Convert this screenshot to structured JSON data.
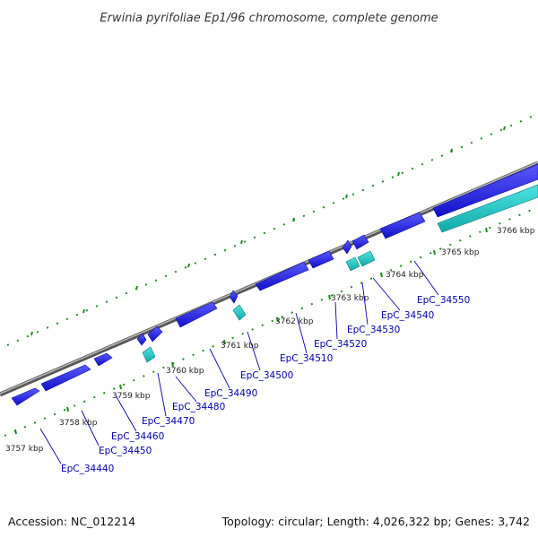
{
  "title": "Erwinia pyrifoliae Ep1/96 chromosome, complete genome",
  "footer": {
    "accession": "Accession: NC_012214",
    "summary": "Topology: circular; Length: 4,026,322 bp; Genes: 3,742"
  },
  "colors": {
    "forward_gene": "#1a1ae6",
    "reverse_gene": "#19c8c8",
    "backbone": "#7a7a7a",
    "tick": "#228b22",
    "label_line": "#0000aa",
    "label_text": "#0000aa"
  },
  "scale_ticks": [
    "3757 kbp",
    "3758 kbp",
    "3759 kbp",
    "3760 kbp",
    "3761 kbp",
    "3762 kbp",
    "3763 kbp",
    "3764 kbp",
    "3765 kbp",
    "3766 kbp"
  ],
  "gene_labels": [
    "EpC_34440",
    "EpC_34450",
    "EpC_34460",
    "EpC_34470",
    "EpC_34480",
    "EpC_34490",
    "EpC_34500",
    "EpC_34510",
    "EpC_34520",
    "EpC_34530",
    "EpC_34540",
    "EpC_34550"
  ]
}
